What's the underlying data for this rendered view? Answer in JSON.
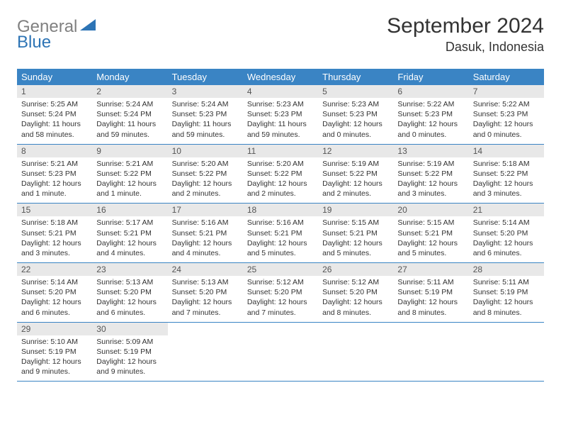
{
  "logo": {
    "text_gray": "General",
    "text_blue": "Blue",
    "icon_color": "#2d74b5"
  },
  "header": {
    "month_title": "September 2024",
    "location": "Dasuk, Indonesia"
  },
  "colors": {
    "header_bg": "#3a84c4",
    "header_text": "#ffffff",
    "daynum_bg": "#e8e8e8",
    "daynum_text": "#555555",
    "body_text": "#333333",
    "week_border": "#3a84c4"
  },
  "day_headers": [
    "Sunday",
    "Monday",
    "Tuesday",
    "Wednesday",
    "Thursday",
    "Friday",
    "Saturday"
  ],
  "weeks": [
    [
      {
        "num": "1",
        "sunrise": "Sunrise: 5:25 AM",
        "sunset": "Sunset: 5:24 PM",
        "daylight": "Daylight: 11 hours and 58 minutes."
      },
      {
        "num": "2",
        "sunrise": "Sunrise: 5:24 AM",
        "sunset": "Sunset: 5:24 PM",
        "daylight": "Daylight: 11 hours and 59 minutes."
      },
      {
        "num": "3",
        "sunrise": "Sunrise: 5:24 AM",
        "sunset": "Sunset: 5:23 PM",
        "daylight": "Daylight: 11 hours and 59 minutes."
      },
      {
        "num": "4",
        "sunrise": "Sunrise: 5:23 AM",
        "sunset": "Sunset: 5:23 PM",
        "daylight": "Daylight: 11 hours and 59 minutes."
      },
      {
        "num": "5",
        "sunrise": "Sunrise: 5:23 AM",
        "sunset": "Sunset: 5:23 PM",
        "daylight": "Daylight: 12 hours and 0 minutes."
      },
      {
        "num": "6",
        "sunrise": "Sunrise: 5:22 AM",
        "sunset": "Sunset: 5:23 PM",
        "daylight": "Daylight: 12 hours and 0 minutes."
      },
      {
        "num": "7",
        "sunrise": "Sunrise: 5:22 AM",
        "sunset": "Sunset: 5:23 PM",
        "daylight": "Daylight: 12 hours and 0 minutes."
      }
    ],
    [
      {
        "num": "8",
        "sunrise": "Sunrise: 5:21 AM",
        "sunset": "Sunset: 5:23 PM",
        "daylight": "Daylight: 12 hours and 1 minute."
      },
      {
        "num": "9",
        "sunrise": "Sunrise: 5:21 AM",
        "sunset": "Sunset: 5:22 PM",
        "daylight": "Daylight: 12 hours and 1 minute."
      },
      {
        "num": "10",
        "sunrise": "Sunrise: 5:20 AM",
        "sunset": "Sunset: 5:22 PM",
        "daylight": "Daylight: 12 hours and 2 minutes."
      },
      {
        "num": "11",
        "sunrise": "Sunrise: 5:20 AM",
        "sunset": "Sunset: 5:22 PM",
        "daylight": "Daylight: 12 hours and 2 minutes."
      },
      {
        "num": "12",
        "sunrise": "Sunrise: 5:19 AM",
        "sunset": "Sunset: 5:22 PM",
        "daylight": "Daylight: 12 hours and 2 minutes."
      },
      {
        "num": "13",
        "sunrise": "Sunrise: 5:19 AM",
        "sunset": "Sunset: 5:22 PM",
        "daylight": "Daylight: 12 hours and 3 minutes."
      },
      {
        "num": "14",
        "sunrise": "Sunrise: 5:18 AM",
        "sunset": "Sunset: 5:22 PM",
        "daylight": "Daylight: 12 hours and 3 minutes."
      }
    ],
    [
      {
        "num": "15",
        "sunrise": "Sunrise: 5:18 AM",
        "sunset": "Sunset: 5:21 PM",
        "daylight": "Daylight: 12 hours and 3 minutes."
      },
      {
        "num": "16",
        "sunrise": "Sunrise: 5:17 AM",
        "sunset": "Sunset: 5:21 PM",
        "daylight": "Daylight: 12 hours and 4 minutes."
      },
      {
        "num": "17",
        "sunrise": "Sunrise: 5:16 AM",
        "sunset": "Sunset: 5:21 PM",
        "daylight": "Daylight: 12 hours and 4 minutes."
      },
      {
        "num": "18",
        "sunrise": "Sunrise: 5:16 AM",
        "sunset": "Sunset: 5:21 PM",
        "daylight": "Daylight: 12 hours and 5 minutes."
      },
      {
        "num": "19",
        "sunrise": "Sunrise: 5:15 AM",
        "sunset": "Sunset: 5:21 PM",
        "daylight": "Daylight: 12 hours and 5 minutes."
      },
      {
        "num": "20",
        "sunrise": "Sunrise: 5:15 AM",
        "sunset": "Sunset: 5:21 PM",
        "daylight": "Daylight: 12 hours and 5 minutes."
      },
      {
        "num": "21",
        "sunrise": "Sunrise: 5:14 AM",
        "sunset": "Sunset: 5:20 PM",
        "daylight": "Daylight: 12 hours and 6 minutes."
      }
    ],
    [
      {
        "num": "22",
        "sunrise": "Sunrise: 5:14 AM",
        "sunset": "Sunset: 5:20 PM",
        "daylight": "Daylight: 12 hours and 6 minutes."
      },
      {
        "num": "23",
        "sunrise": "Sunrise: 5:13 AM",
        "sunset": "Sunset: 5:20 PM",
        "daylight": "Daylight: 12 hours and 6 minutes."
      },
      {
        "num": "24",
        "sunrise": "Sunrise: 5:13 AM",
        "sunset": "Sunset: 5:20 PM",
        "daylight": "Daylight: 12 hours and 7 minutes."
      },
      {
        "num": "25",
        "sunrise": "Sunrise: 5:12 AM",
        "sunset": "Sunset: 5:20 PM",
        "daylight": "Daylight: 12 hours and 7 minutes."
      },
      {
        "num": "26",
        "sunrise": "Sunrise: 5:12 AM",
        "sunset": "Sunset: 5:20 PM",
        "daylight": "Daylight: 12 hours and 8 minutes."
      },
      {
        "num": "27",
        "sunrise": "Sunrise: 5:11 AM",
        "sunset": "Sunset: 5:19 PM",
        "daylight": "Daylight: 12 hours and 8 minutes."
      },
      {
        "num": "28",
        "sunrise": "Sunrise: 5:11 AM",
        "sunset": "Sunset: 5:19 PM",
        "daylight": "Daylight: 12 hours and 8 minutes."
      }
    ],
    [
      {
        "num": "29",
        "sunrise": "Sunrise: 5:10 AM",
        "sunset": "Sunset: 5:19 PM",
        "daylight": "Daylight: 12 hours and 9 minutes."
      },
      {
        "num": "30",
        "sunrise": "Sunrise: 5:09 AM",
        "sunset": "Sunset: 5:19 PM",
        "daylight": "Daylight: 12 hours and 9 minutes."
      },
      null,
      null,
      null,
      null,
      null
    ]
  ]
}
